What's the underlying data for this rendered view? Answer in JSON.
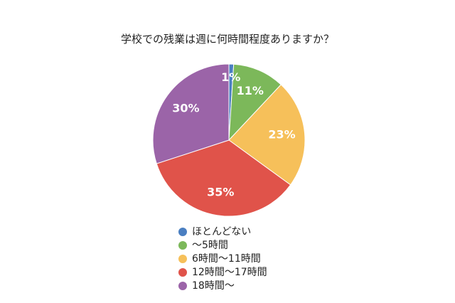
{
  "chart_data": {
    "type": "pie",
    "title": "学校での残業は週に何時間程度ありますか？",
    "categories": [
      "ほとんどない",
      "〜5時間",
      "6時間〜11時間",
      "12時間〜17時間",
      "18時間〜"
    ],
    "values": [
      1,
      11,
      23,
      35,
      30
    ],
    "value_labels": [
      "1%",
      "11%",
      "23%",
      "35%",
      "30%"
    ],
    "colors": [
      "#4a7fc1",
      "#7cb85a",
      "#f6c05a",
      "#e0534a",
      "#9b64a8"
    ]
  }
}
